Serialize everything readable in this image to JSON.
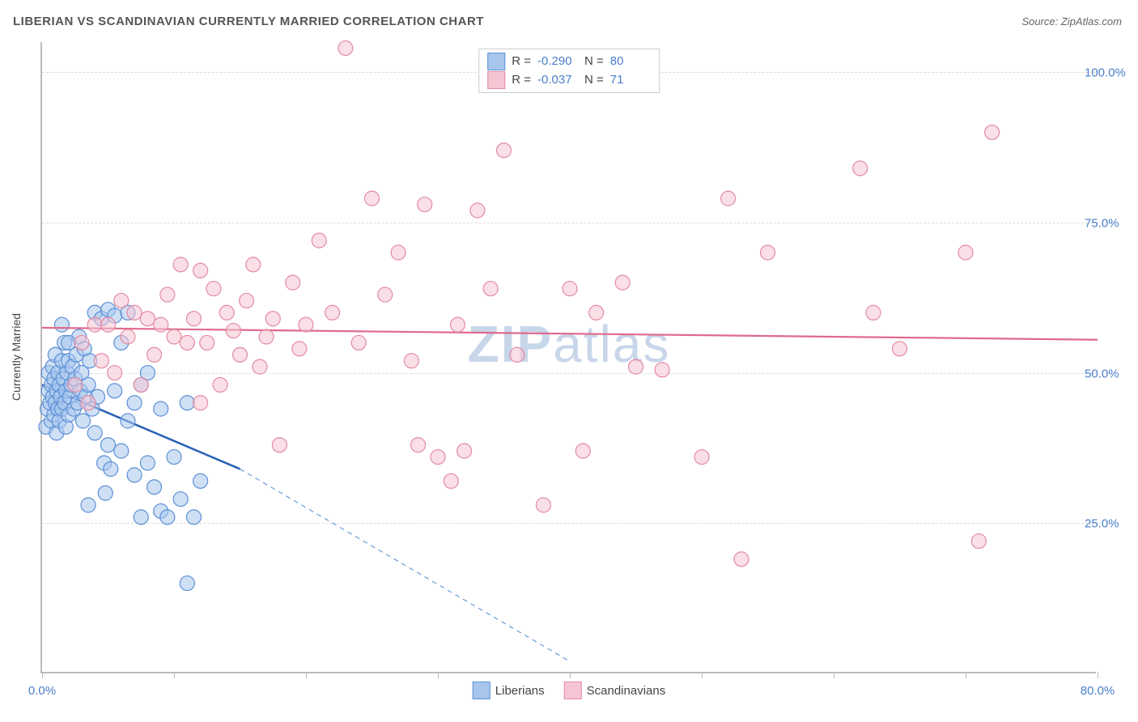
{
  "title": "LIBERIAN VS SCANDINAVIAN CURRENTLY MARRIED CORRELATION CHART",
  "source_prefix": "Source: ",
  "source_name": "ZipAtlas.com",
  "watermark_bold": "ZIP",
  "watermark_rest": "atlas",
  "y_axis_title": "Currently Married",
  "chart": {
    "type": "scatter",
    "xlim": [
      0,
      80
    ],
    "ylim": [
      0,
      105
    ],
    "x_ticks": [
      0,
      10,
      20,
      30,
      40,
      50,
      60,
      70,
      80
    ],
    "x_tick_labels": {
      "0": "0.0%",
      "80": "80.0%"
    },
    "y_grid": [
      25,
      50,
      75,
      100
    ],
    "y_tick_labels": {
      "25": "25.0%",
      "50": "50.0%",
      "75": "75.0%",
      "100": "100.0%"
    },
    "background_color": "#ffffff",
    "grid_color": "#dddddd",
    "axis_color": "#bbbbbb",
    "tick_label_color": "#4a7ec9",
    "point_radius": 9,
    "point_opacity": 0.55,
    "series": [
      {
        "name": "Liberians",
        "fill": "#a8c6ec",
        "stroke": "#5c8fd6",
        "R_label": "R =",
        "R": "-0.290",
        "N_label": "N =",
        "N": "80",
        "trend": {
          "solid": {
            "x1": 0,
            "y1": 48,
            "x2": 15,
            "y2": 34,
            "color": "#2b62b5",
            "width": 2.5
          },
          "dashed": {
            "x1": 15,
            "y1": 34,
            "x2": 40,
            "y2": 2,
            "color": "#6a9bd8",
            "width": 1.2,
            "dash": "6,5"
          }
        },
        "points": [
          [
            0.3,
            41
          ],
          [
            0.4,
            44
          ],
          [
            0.5,
            47
          ],
          [
            0.5,
            50
          ],
          [
            0.6,
            45
          ],
          [
            0.7,
            42
          ],
          [
            0.7,
            48
          ],
          [
            0.8,
            46
          ],
          [
            0.8,
            51
          ],
          [
            0.9,
            43
          ],
          [
            0.9,
            49
          ],
          [
            1.0,
            45
          ],
          [
            1.0,
            53
          ],
          [
            1.1,
            40
          ],
          [
            1.1,
            47
          ],
          [
            1.2,
            44
          ],
          [
            1.2,
            50
          ],
          [
            1.3,
            42
          ],
          [
            1.3,
            48
          ],
          [
            1.4,
            46
          ],
          [
            1.5,
            52
          ],
          [
            1.5,
            44
          ],
          [
            1.6,
            49
          ],
          [
            1.7,
            45
          ],
          [
            1.7,
            55
          ],
          [
            1.8,
            41
          ],
          [
            1.8,
            47
          ],
          [
            1.9,
            50
          ],
          [
            2.0,
            43
          ],
          [
            2.0,
            52
          ],
          [
            2.1,
            46
          ],
          [
            2.2,
            48
          ],
          [
            2.3,
            51
          ],
          [
            2.4,
            44
          ],
          [
            2.5,
            49
          ],
          [
            2.6,
            53
          ],
          [
            2.7,
            45
          ],
          [
            2.8,
            56
          ],
          [
            2.9,
            47
          ],
          [
            3.0,
            50
          ],
          [
            3.1,
            42
          ],
          [
            3.2,
            54
          ],
          [
            3.3,
            46
          ],
          [
            3.5,
            48
          ],
          [
            3.6,
            52
          ],
          [
            3.8,
            44
          ],
          [
            4.0,
            40
          ],
          [
            4.0,
            60
          ],
          [
            4.2,
            46
          ],
          [
            4.5,
            59
          ],
          [
            4.7,
            35
          ],
          [
            5.0,
            38
          ],
          [
            5.0,
            60.5
          ],
          [
            5.2,
            34
          ],
          [
            5.5,
            59.5
          ],
          [
            5.5,
            47
          ],
          [
            6.0,
            37
          ],
          [
            6.0,
            55
          ],
          [
            6.5,
            60
          ],
          [
            6.5,
            42
          ],
          [
            7.0,
            45
          ],
          [
            7.0,
            33
          ],
          [
            7.5,
            48
          ],
          [
            7.5,
            26
          ],
          [
            8.0,
            35
          ],
          [
            8.0,
            50
          ],
          [
            8.5,
            31
          ],
          [
            9.0,
            27
          ],
          [
            9.0,
            44
          ],
          [
            9.5,
            26
          ],
          [
            10.0,
            36
          ],
          [
            10.5,
            29
          ],
          [
            11.0,
            45
          ],
          [
            11.0,
            15
          ],
          [
            11.5,
            26
          ],
          [
            12.0,
            32
          ],
          [
            3.5,
            28
          ],
          [
            4.8,
            30
          ],
          [
            2.0,
            55
          ],
          [
            1.5,
            58
          ]
        ]
      },
      {
        "name": "Scandinavians",
        "fill": "#f6c5d3",
        "stroke": "#e38aa3",
        "R_label": "R =",
        "R": "-0.037",
        "N_label": "N =",
        "N": "71",
        "trend": {
          "solid": {
            "x1": 0,
            "y1": 57.5,
            "x2": 80,
            "y2": 55.5,
            "color": "#e06a8c",
            "width": 2.2
          }
        },
        "points": [
          [
            2.5,
            48
          ],
          [
            3.0,
            55
          ],
          [
            3.5,
            45
          ],
          [
            4.0,
            58
          ],
          [
            4.5,
            52
          ],
          [
            5.0,
            58
          ],
          [
            5.5,
            50
          ],
          [
            6.0,
            62
          ],
          [
            6.5,
            56
          ],
          [
            7.0,
            60
          ],
          [
            7.5,
            48
          ],
          [
            8.0,
            59
          ],
          [
            8.5,
            53
          ],
          [
            9.0,
            58
          ],
          [
            9.5,
            63
          ],
          [
            10.0,
            56
          ],
          [
            10.5,
            68
          ],
          [
            11.0,
            55
          ],
          [
            11.5,
            59
          ],
          [
            12.0,
            67
          ],
          [
            12.5,
            55
          ],
          [
            13.0,
            64
          ],
          [
            14.0,
            60
          ],
          [
            15.0,
            53
          ],
          [
            16.0,
            68
          ],
          [
            17.0,
            56
          ],
          [
            18.0,
            38
          ],
          [
            19.0,
            65
          ],
          [
            20.0,
            58
          ],
          [
            21.0,
            72
          ],
          [
            22.0,
            60
          ],
          [
            23.0,
            104
          ],
          [
            24.0,
            55
          ],
          [
            25.0,
            79
          ],
          [
            26.0,
            63
          ],
          [
            27.0,
            70
          ],
          [
            28.0,
            52
          ],
          [
            28.5,
            38
          ],
          [
            29.0,
            78
          ],
          [
            30.0,
            36
          ],
          [
            31.0,
            32
          ],
          [
            31.5,
            58
          ],
          [
            32.0,
            37
          ],
          [
            33.0,
            77
          ],
          [
            34.0,
            64
          ],
          [
            35.0,
            87
          ],
          [
            36.0,
            53
          ],
          [
            38.0,
            28
          ],
          [
            40.0,
            64
          ],
          [
            41.0,
            37
          ],
          [
            42.0,
            60
          ],
          [
            44.0,
            65
          ],
          [
            45.0,
            51
          ],
          [
            47.0,
            50.5
          ],
          [
            50.0,
            36
          ],
          [
            52.0,
            79
          ],
          [
            53.0,
            19
          ],
          [
            55.0,
            70
          ],
          [
            62.0,
            84
          ],
          [
            63.0,
            60
          ],
          [
            65.0,
            54
          ],
          [
            70.0,
            70
          ],
          [
            71.0,
            22
          ],
          [
            72.0,
            90
          ],
          [
            12.0,
            45
          ],
          [
            13.5,
            48
          ],
          [
            14.5,
            57
          ],
          [
            15.5,
            62
          ],
          [
            16.5,
            51
          ],
          [
            17.5,
            59
          ],
          [
            19.5,
            54
          ]
        ]
      }
    ]
  },
  "legend_items": [
    "Liberians",
    "Scandinavians"
  ]
}
